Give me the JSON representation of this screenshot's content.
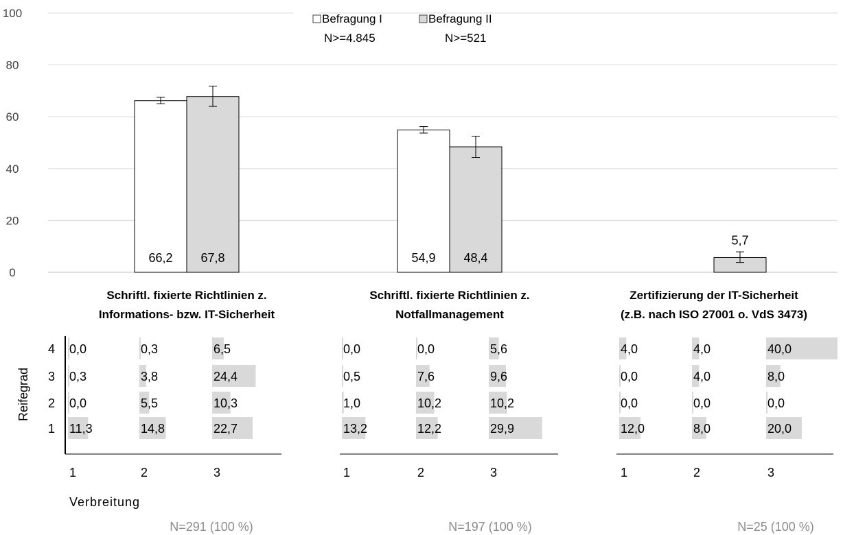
{
  "chart_data": {
    "type": "bar",
    "ylim": [
      0,
      100
    ],
    "yticks": [
      0,
      20,
      40,
      60,
      80,
      100
    ],
    "grid": true,
    "legend_position": "top-center",
    "colors": {
      "befragung_1": "#ffffff",
      "befragung_2": "#d9d9d9",
      "outline": "#000000",
      "grid": "#d9d9d9",
      "heat": "#d9d9d9",
      "footer": "#8c8c8c"
    },
    "legend": [
      {
        "name": "Befragung I",
        "sample": "N>=4.845"
      },
      {
        "name": "Befragung II",
        "sample": "N>=521"
      }
    ],
    "categories": [
      {
        "line1": "Schriftl. fixierte Richtlinien z.",
        "line2": "Informations- bzw. IT-Sicherheit"
      },
      {
        "line1": "Schriftl. fixierte Richtlinien z.",
        "line2": "Notfallmanagement"
      },
      {
        "line1": "Zertifizierung der IT-Sicherheit",
        "line2": "(z.B. nach ISO 27001 o. VdS 3473)"
      }
    ],
    "series": [
      {
        "name": "Befragung I",
        "values": [
          66.2,
          54.9,
          null
        ],
        "labels": [
          "66,2",
          "54,9",
          ""
        ],
        "err_low": [
          65.0,
          53.7,
          null
        ],
        "err_high": [
          67.5,
          56.2,
          null
        ]
      },
      {
        "name": "Befragung II",
        "values": [
          67.8,
          48.4,
          5.7
        ],
        "labels": [
          "67,8",
          "48,4",
          "5,7"
        ],
        "err_low": [
          64.0,
          44.3,
          3.8
        ],
        "err_high": [
          71.8,
          52.5,
          7.9
        ]
      }
    ],
    "heatmap": {
      "ylabel": "Reifegrad",
      "xlabel": "Verbreitung",
      "row_labels": [
        "4",
        "3",
        "2",
        "1"
      ],
      "col_labels": [
        "1",
        "2",
        "3"
      ],
      "panels": [
        {
          "values": [
            [
              0.0,
              0.3,
              6.5
            ],
            [
              0.3,
              3.8,
              24.4
            ],
            [
              0.0,
              5.5,
              10.3
            ],
            [
              11.3,
              14.8,
              22.7
            ]
          ],
          "labels": [
            [
              "0,0",
              "0,3",
              "6,5"
            ],
            [
              "0,3",
              "3,8",
              "24,4"
            ],
            [
              "0,0",
              "5,5",
              "10,3"
            ],
            [
              "11,3",
              "14,8",
              "22,7"
            ]
          ],
          "n": "N=291 (100 %)"
        },
        {
          "values": [
            [
              0.0,
              0.0,
              5.6
            ],
            [
              0.5,
              7.6,
              9.6
            ],
            [
              1.0,
              10.2,
              10.2
            ],
            [
              13.2,
              12.2,
              29.9
            ]
          ],
          "labels": [
            [
              "0,0",
              "0,0",
              "5,6"
            ],
            [
              "0,5",
              "7,6",
              "9,6"
            ],
            [
              "1,0",
              "10,2",
              "10,2"
            ],
            [
              "13,2",
              "12,2",
              "29,9"
            ]
          ],
          "n": "N=197 (100 %)"
        },
        {
          "values": [
            [
              4.0,
              4.0,
              40.0
            ],
            [
              0.0,
              4.0,
              8.0
            ],
            [
              0.0,
              0.0,
              0.0
            ],
            [
              12.0,
              8.0,
              20.0
            ]
          ],
          "labels": [
            [
              "4,0",
              "4,0",
              "40,0"
            ],
            [
              "0,0",
              "4,0",
              "8,0"
            ],
            [
              "0,0",
              "0,0",
              "0,0"
            ],
            [
              "12,0",
              "8,0",
              "20,0"
            ]
          ],
          "n": "N=25 (100 %)"
        }
      ]
    }
  }
}
